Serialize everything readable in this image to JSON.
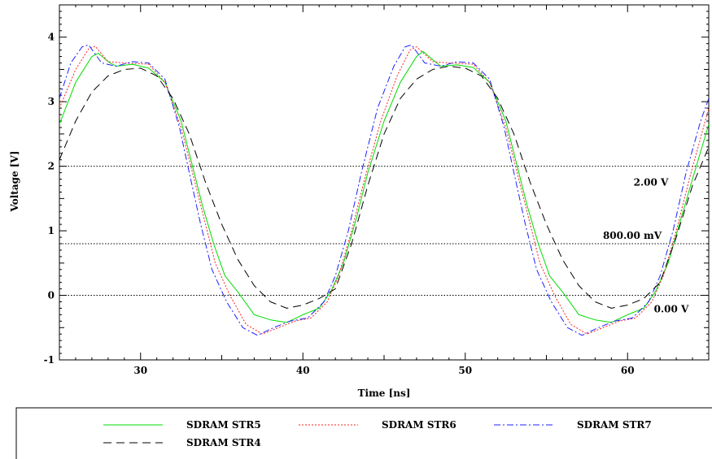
{
  "chart_data": {
    "type": "line",
    "title": "",
    "xlabel": "Time [ns]",
    "ylabel": "Voltage [V]",
    "xlim": [
      25,
      65
    ],
    "ylim": [
      -1,
      4.5
    ],
    "xticks": [
      30,
      40,
      50,
      60
    ],
    "yticks": [
      -1,
      0,
      1,
      2,
      3,
      4
    ],
    "x_tick_labels": [
      "30",
      "40",
      "50",
      "60"
    ],
    "y_tick_labels": [
      "-1",
      "0",
      "1",
      "2",
      "3",
      "4"
    ],
    "grid": false,
    "legend_position": "bottom",
    "reference_lines": [
      {
        "value": 2.0,
        "label": "2.00 V",
        "style": "dotted"
      },
      {
        "value": 0.8,
        "label": "800.00 mV",
        "style": "dotted"
      },
      {
        "value": 0.0,
        "label": "0.00 V",
        "style": "dotted"
      }
    ],
    "series": [
      {
        "name": "SDRAM STR5",
        "color": "#00dd00",
        "dash": "solid",
        "points": [
          [
            25,
            2.65
          ],
          [
            26,
            3.3
          ],
          [
            27,
            3.7
          ],
          [
            27.4,
            3.75
          ],
          [
            28,
            3.62
          ],
          [
            28.5,
            3.55
          ],
          [
            29.5,
            3.58
          ],
          [
            30.5,
            3.52
          ],
          [
            31.5,
            3.3
          ],
          [
            32.5,
            2.7
          ],
          [
            33.2,
            2.0
          ],
          [
            33.8,
            1.4
          ],
          [
            34.5,
            0.8
          ],
          [
            35.2,
            0.3
          ],
          [
            36,
            0.05
          ],
          [
            37,
            -0.3
          ],
          [
            38,
            -0.38
          ],
          [
            39,
            -0.42
          ],
          [
            40,
            -0.3
          ],
          [
            41,
            -0.2
          ],
          [
            41.7,
            0.05
          ],
          [
            42.5,
            0.5
          ],
          [
            43.3,
            1.2
          ],
          [
            44,
            1.9
          ],
          [
            45,
            2.7
          ],
          [
            46,
            3.3
          ],
          [
            47,
            3.7
          ],
          [
            47.4,
            3.78
          ],
          [
            48,
            3.65
          ],
          [
            48.5,
            3.55
          ],
          [
            49.5,
            3.57
          ],
          [
            50.5,
            3.53
          ],
          [
            51.5,
            3.3
          ],
          [
            52.5,
            2.7
          ],
          [
            53.2,
            2.0
          ],
          [
            53.8,
            1.4
          ],
          [
            54.5,
            0.8
          ],
          [
            55.2,
            0.3
          ],
          [
            56,
            0.05
          ],
          [
            57,
            -0.3
          ],
          [
            58,
            -0.38
          ],
          [
            59,
            -0.42
          ],
          [
            60,
            -0.3
          ],
          [
            61,
            -0.2
          ],
          [
            61.7,
            0.05
          ],
          [
            62.5,
            0.5
          ],
          [
            63.3,
            1.2
          ],
          [
            64,
            1.8
          ],
          [
            65,
            2.65
          ]
        ]
      },
      {
        "name": "SDRAM STR6",
        "color": "#ff2020",
        "dash": "dotted",
        "points": [
          [
            25,
            2.9
          ],
          [
            26,
            3.5
          ],
          [
            26.8,
            3.82
          ],
          [
            27.2,
            3.86
          ],
          [
            28,
            3.62
          ],
          [
            29,
            3.6
          ],
          [
            30.5,
            3.58
          ],
          [
            31.5,
            3.3
          ],
          [
            32.5,
            2.6
          ],
          [
            33.2,
            1.9
          ],
          [
            33.9,
            1.2
          ],
          [
            34.6,
            0.5
          ],
          [
            35.5,
            0.0
          ],
          [
            36.5,
            -0.45
          ],
          [
            37.5,
            -0.6
          ],
          [
            38.5,
            -0.5
          ],
          [
            39.5,
            -0.4
          ],
          [
            40.5,
            -0.35
          ],
          [
            41.5,
            -0.1
          ],
          [
            42.2,
            0.3
          ],
          [
            43,
            1.0
          ],
          [
            43.8,
            1.8
          ],
          [
            44.8,
            2.7
          ],
          [
            45.8,
            3.4
          ],
          [
            46.6,
            3.8
          ],
          [
            47,
            3.85
          ],
          [
            48,
            3.62
          ],
          [
            49,
            3.6
          ],
          [
            50.5,
            3.58
          ],
          [
            51.5,
            3.3
          ],
          [
            52.5,
            2.6
          ],
          [
            53.2,
            1.9
          ],
          [
            53.9,
            1.2
          ],
          [
            54.6,
            0.5
          ],
          [
            55.5,
            0.0
          ],
          [
            56.5,
            -0.45
          ],
          [
            57.5,
            -0.6
          ],
          [
            58.5,
            -0.5
          ],
          [
            59.5,
            -0.4
          ],
          [
            60.5,
            -0.35
          ],
          [
            61.5,
            -0.1
          ],
          [
            62.2,
            0.3
          ],
          [
            63,
            1.0
          ],
          [
            63.8,
            1.8
          ],
          [
            65,
            2.9
          ]
        ]
      },
      {
        "name": "SDRAM STR7",
        "color": "#2020ff",
        "dash": "dashdot",
        "points": [
          [
            25,
            3.05
          ],
          [
            25.7,
            3.6
          ],
          [
            26.4,
            3.85
          ],
          [
            26.8,
            3.88
          ],
          [
            27.6,
            3.6
          ],
          [
            28.5,
            3.55
          ],
          [
            29.5,
            3.62
          ],
          [
            30.5,
            3.6
          ],
          [
            31.5,
            3.35
          ],
          [
            32.4,
            2.6
          ],
          [
            33,
            1.9
          ],
          [
            33.7,
            1.1
          ],
          [
            34.4,
            0.4
          ],
          [
            35.3,
            -0.1
          ],
          [
            36.3,
            -0.5
          ],
          [
            37.2,
            -0.62
          ],
          [
            38.2,
            -0.5
          ],
          [
            39.2,
            -0.4
          ],
          [
            40.3,
            -0.35
          ],
          [
            41.3,
            -0.1
          ],
          [
            42,
            0.3
          ],
          [
            42.8,
            1.0
          ],
          [
            43.6,
            1.9
          ],
          [
            44.6,
            2.9
          ],
          [
            45.6,
            3.55
          ],
          [
            46.3,
            3.85
          ],
          [
            46.7,
            3.88
          ],
          [
            47.5,
            3.6
          ],
          [
            48.5,
            3.55
          ],
          [
            49.5,
            3.62
          ],
          [
            50.5,
            3.6
          ],
          [
            51.5,
            3.35
          ],
          [
            52.4,
            2.6
          ],
          [
            53,
            1.9
          ],
          [
            53.7,
            1.1
          ],
          [
            54.4,
            0.4
          ],
          [
            55.3,
            -0.1
          ],
          [
            56.3,
            -0.5
          ],
          [
            57.2,
            -0.62
          ],
          [
            58.2,
            -0.5
          ],
          [
            59.2,
            -0.4
          ],
          [
            60.3,
            -0.35
          ],
          [
            61.3,
            -0.1
          ],
          [
            62,
            0.3
          ],
          [
            62.8,
            1.0
          ],
          [
            63.6,
            1.9
          ],
          [
            64.5,
            2.7
          ],
          [
            65,
            3.05
          ]
        ]
      },
      {
        "name": "SDRAM STR4",
        "color": "#000000",
        "dash": "dashed",
        "points": [
          [
            25,
            2.1
          ],
          [
            26,
            2.7
          ],
          [
            27,
            3.15
          ],
          [
            28,
            3.4
          ],
          [
            29,
            3.5
          ],
          [
            30,
            3.52
          ],
          [
            31,
            3.4
          ],
          [
            32,
            3.05
          ],
          [
            33,
            2.5
          ],
          [
            34,
            1.75
          ],
          [
            35,
            1.1
          ],
          [
            36,
            0.55
          ],
          [
            37,
            0.15
          ],
          [
            38,
            -0.1
          ],
          [
            39,
            -0.2
          ],
          [
            40,
            -0.15
          ],
          [
            41,
            -0.05
          ],
          [
            42,
            0.1
          ],
          [
            43,
            0.8
          ],
          [
            44,
            1.7
          ],
          [
            45,
            2.5
          ],
          [
            46,
            3.05
          ],
          [
            47,
            3.35
          ],
          [
            48,
            3.5
          ],
          [
            49,
            3.55
          ],
          [
            50,
            3.52
          ],
          [
            51,
            3.4
          ],
          [
            52,
            3.05
          ],
          [
            53,
            2.5
          ],
          [
            54,
            1.75
          ],
          [
            55,
            1.1
          ],
          [
            56,
            0.55
          ],
          [
            57,
            0.15
          ],
          [
            58,
            -0.1
          ],
          [
            59,
            -0.2
          ],
          [
            60,
            -0.15
          ],
          [
            61,
            -0.05
          ],
          [
            62,
            0.2
          ],
          [
            63,
            0.9
          ],
          [
            64,
            1.7
          ],
          [
            65,
            2.3
          ]
        ]
      }
    ]
  }
}
